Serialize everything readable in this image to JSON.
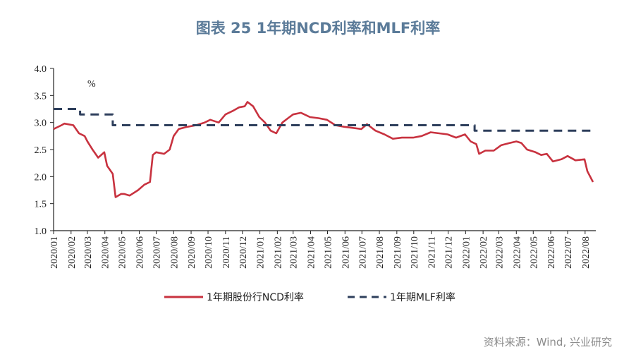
{
  "title": "图表 25  1年期NCD利率和MLF利率",
  "source": "资料来源：Wind, 兴业研究",
  "chart_data": {
    "type": "line",
    "title": "图表 25  1年期NCD利率和MLF利率",
    "ylabel": "%",
    "ylim": [
      1.0,
      4.0
    ],
    "yticks": [
      "1.0",
      "1.5",
      "2.0",
      "2.5",
      "3.0",
      "3.5",
      "4.0"
    ],
    "xlim": [
      "2020-01-01",
      "2022-08-20"
    ],
    "xticks": [
      "2020/01",
      "2020/02",
      "2020/03",
      "2020/04",
      "2020/05",
      "2020/06",
      "2020/07",
      "2020/08",
      "2020/09",
      "2020/10",
      "2020/11",
      "2020/12",
      "2021/01",
      "2021/02",
      "2021/03",
      "2021/04",
      "2021/05",
      "2021/06",
      "2021/07",
      "2021/08",
      "2021/09",
      "2021/10",
      "2021/11",
      "2021/12",
      "2022/01",
      "2022/02",
      "2022/03",
      "2022/04",
      "2022/05",
      "2022/06",
      "2022/07",
      "2022/08"
    ],
    "grid": false,
    "legend": "bottom",
    "series": [
      {
        "name": "1年期股份行NCD利率",
        "color": "#c8323f",
        "style": "solid",
        "x": [
          "2020-01-01",
          "2020-01-15",
          "2020-01-20",
          "2020-02-05",
          "2020-02-15",
          "2020-02-25",
          "2020-03-01",
          "2020-03-10",
          "2020-03-20",
          "2020-03-31",
          "2020-04-05",
          "2020-04-15",
          "2020-04-20",
          "2020-04-30",
          "2020-05-05",
          "2020-05-15",
          "2020-05-30",
          "2020-06-10",
          "2020-06-20",
          "2020-06-25",
          "2020-07-01",
          "2020-07-15",
          "2020-07-25",
          "2020-08-01",
          "2020-08-10",
          "2020-08-25",
          "2020-09-10",
          "2020-09-25",
          "2020-10-05",
          "2020-10-20",
          "2020-11-01",
          "2020-11-15",
          "2020-11-25",
          "2020-12-05",
          "2020-12-10",
          "2020-12-20",
          "2020-12-31",
          "2021-01-10",
          "2021-01-20",
          "2021-01-30",
          "2021-02-10",
          "2021-02-20",
          "2021-03-01",
          "2021-03-15",
          "2021-03-31",
          "2021-04-15",
          "2021-04-30",
          "2021-05-15",
          "2021-05-31",
          "2021-06-15",
          "2021-06-30",
          "2021-07-10",
          "2021-07-25",
          "2021-08-10",
          "2021-08-25",
          "2021-09-10",
          "2021-09-30",
          "2021-10-15",
          "2021-10-31",
          "2021-11-15",
          "2021-11-30",
          "2021-12-15",
          "2021-12-31",
          "2022-01-10",
          "2022-01-20",
          "2022-01-25",
          "2022-02-05",
          "2022-02-20",
          "2022-03-05",
          "2022-03-20",
          "2022-04-01",
          "2022-04-10",
          "2022-04-20",
          "2022-05-05",
          "2022-05-15",
          "2022-05-25",
          "2022-06-05",
          "2022-06-20",
          "2022-07-01",
          "2022-07-15",
          "2022-07-31",
          "2022-08-05",
          "2022-08-15"
        ],
        "values": [
          2.88,
          2.95,
          2.98,
          2.95,
          2.8,
          2.75,
          2.65,
          2.5,
          2.35,
          2.45,
          2.2,
          2.05,
          1.62,
          1.68,
          1.68,
          1.65,
          1.75,
          1.85,
          1.9,
          2.4,
          2.45,
          2.42,
          2.5,
          2.75,
          2.88,
          2.92,
          2.95,
          3.0,
          3.05,
          3.0,
          3.15,
          3.22,
          3.28,
          3.3,
          3.38,
          3.3,
          3.1,
          3.0,
          2.85,
          2.8,
          3.0,
          3.08,
          3.15,
          3.18,
          3.1,
          3.08,
          3.05,
          2.95,
          2.92,
          2.9,
          2.88,
          2.97,
          2.85,
          2.78,
          2.7,
          2.72,
          2.72,
          2.75,
          2.82,
          2.8,
          2.78,
          2.72,
          2.78,
          2.65,
          2.6,
          2.42,
          2.48,
          2.48,
          2.58,
          2.62,
          2.65,
          2.62,
          2.5,
          2.45,
          2.4,
          2.42,
          2.28,
          2.32,
          2.38,
          2.3,
          2.32,
          2.1,
          1.9
        ]
      },
      {
        "name": "1年期MLF利率",
        "color": "#2e3f5c",
        "style": "dashed",
        "x": [
          "2020-01-01",
          "2020-02-17",
          "2020-02-17",
          "2020-04-15",
          "2020-04-15",
          "2022-01-17",
          "2022-01-17",
          "2022-08-20"
        ],
        "values": [
          3.25,
          3.25,
          3.15,
          3.15,
          2.95,
          2.95,
          2.85,
          2.85
        ]
      }
    ]
  }
}
